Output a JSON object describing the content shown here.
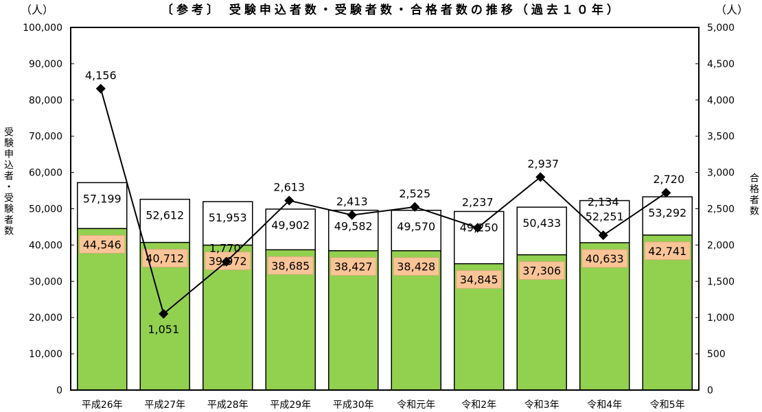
{
  "chart_data": {
    "type": "bar",
    "title": "〔参考〕 受験申込者数・受験者数・合格者数の推移（過去１０年）",
    "left_unit": "（人）",
    "right_unit": "（人）",
    "ylabel_left": "受験申込者・受験者数",
    "ylabel_right": "合格者数",
    "ylim_left": [
      0,
      100000
    ],
    "ylim_right": [
      0,
      5000
    ],
    "yticks_left": [
      "0",
      "10,000",
      "20,000",
      "30,000",
      "40,000",
      "50,000",
      "60,000",
      "70,000",
      "80,000",
      "90,000",
      "100,000"
    ],
    "yticks_right": [
      "0",
      "500",
      "1,000",
      "1,500",
      "2,000",
      "2,500",
      "3,000",
      "3,500",
      "4,000",
      "4,500",
      "5,000"
    ],
    "categories": [
      "平成26年",
      "平成27年",
      "平成28年",
      "平成29年",
      "平成30年",
      "令和元年",
      "令和2年",
      "令和3年",
      "令和4年",
      "令和5年"
    ],
    "series": [
      {
        "name": "受験申込者数",
        "type": "bar",
        "axis": "left",
        "color": "#ffffff",
        "values": [
          57199,
          52612,
          51953,
          49902,
          49582,
          49570,
          49250,
          50433,
          52251,
          53292
        ],
        "labels": [
          "57,199",
          "52,612",
          "51,953",
          "49,902",
          "49,582",
          "49,570",
          "49,250",
          "50,433",
          "52,251",
          "53,292"
        ]
      },
      {
        "name": "受験者数",
        "type": "bar",
        "axis": "left",
        "color": "#92d050",
        "label_bg": "#fac497",
        "values": [
          44546,
          40712,
          39972,
          38685,
          38427,
          38428,
          34845,
          37306,
          40633,
          42741
        ],
        "labels": [
          "44,546",
          "40,712",
          "39,972",
          "38,685",
          "38,427",
          "38,428",
          "34,845",
          "37,306",
          "40,633",
          "42,741"
        ]
      },
      {
        "name": "合格者数",
        "type": "line",
        "axis": "right",
        "color": "#000000",
        "values": [
          4156,
          1051,
          1770,
          2613,
          2413,
          2525,
          2237,
          2937,
          2134,
          2720
        ],
        "labels": [
          "4,156",
          "1,051",
          "1,770",
          "2,613",
          "2,413",
          "2,525",
          "2,237",
          "2,937",
          "2,134",
          "2,720"
        ]
      }
    ]
  }
}
